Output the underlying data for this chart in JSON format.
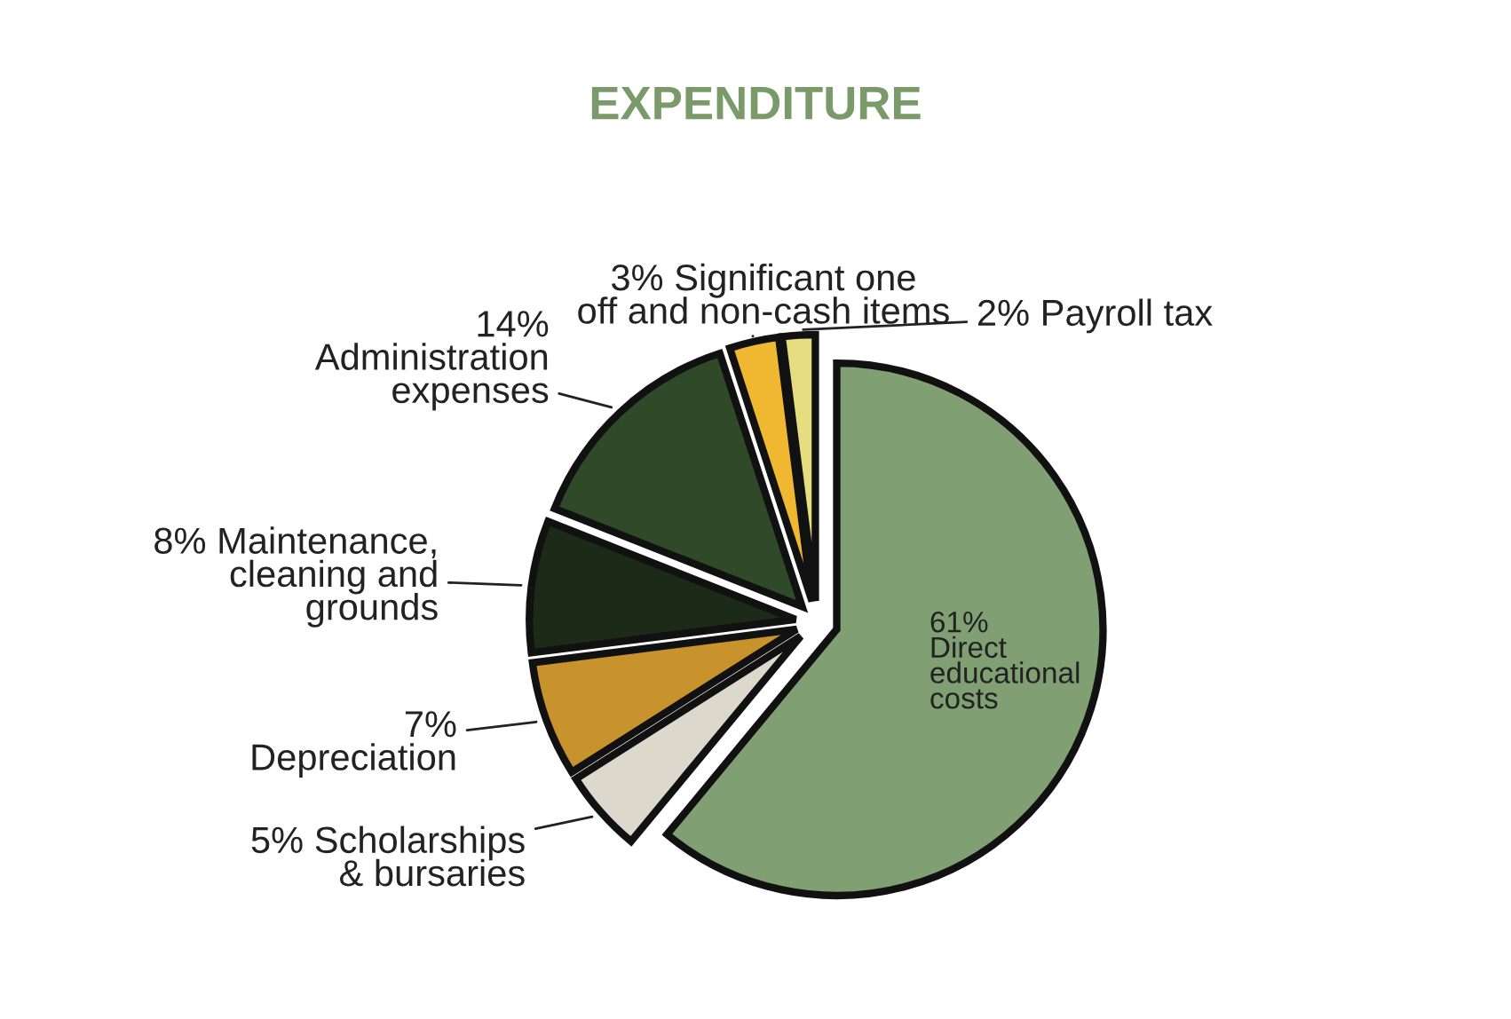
{
  "chart_data": {
    "type": "pie",
    "title": "EXPENDITURE",
    "categories": [
      "Direct\neducational\ncosts",
      "Scholarships\n& bursaries",
      "Depreciation",
      "Maintenance,\ncleaning and\ngrounds",
      "Administration\nexpenses",
      "Significant one\noff and non-cash items",
      "Payroll tax"
    ],
    "values": [
      61,
      5,
      7,
      8,
      14,
      3,
      2
    ],
    "value_labels": [
      "61%",
      "5%",
      "7%",
      "8%",
      "14%",
      "3%",
      "2%"
    ],
    "colors": [
      "#80a074",
      "#dcd8cc",
      "#c8922c",
      "#1c2a18",
      "#2f4a28",
      "#f0b830",
      "#e6dc80"
    ]
  }
}
